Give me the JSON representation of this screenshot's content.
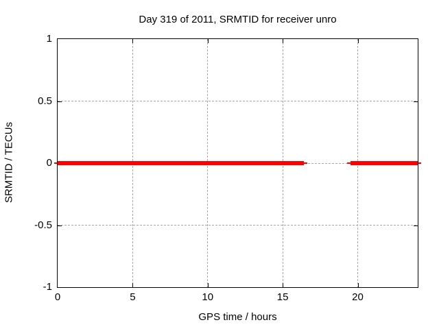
{
  "chart_data": {
    "type": "line",
    "title": "Day 319 of 2011, SRMTID for receiver unro",
    "xlabel": "GPS time / hours",
    "ylabel": "SRMTID / TECUs",
    "xlim": [
      0,
      24
    ],
    "ylim": [
      -1,
      1
    ],
    "xticks": [
      0,
      5,
      10,
      15,
      20
    ],
    "xtick_labels": [
      "0",
      "5",
      "10",
      "15",
      "20"
    ],
    "yticks": [
      1,
      0.5,
      0,
      -0.5,
      -1
    ],
    "ytick_labels": [
      "1",
      "0.5",
      "0",
      "-0.5",
      "-1"
    ],
    "grid": "dashed",
    "legend": "none",
    "background_color": "#ffffff",
    "line_color": "#ff0000",
    "grid_color": "#a8a8a8",
    "axis_color": "#000000",
    "series": [
      {
        "name": "SRMTID",
        "y_value": 0,
        "segments": [
          {
            "x_start": 0,
            "x_end": 16.4,
            "y": 0
          },
          {
            "x_start": 19.5,
            "x_end": 24,
            "y": 0
          }
        ]
      }
    ],
    "data_gap": {
      "x_start": 16.4,
      "x_end": 19.5
    }
  }
}
